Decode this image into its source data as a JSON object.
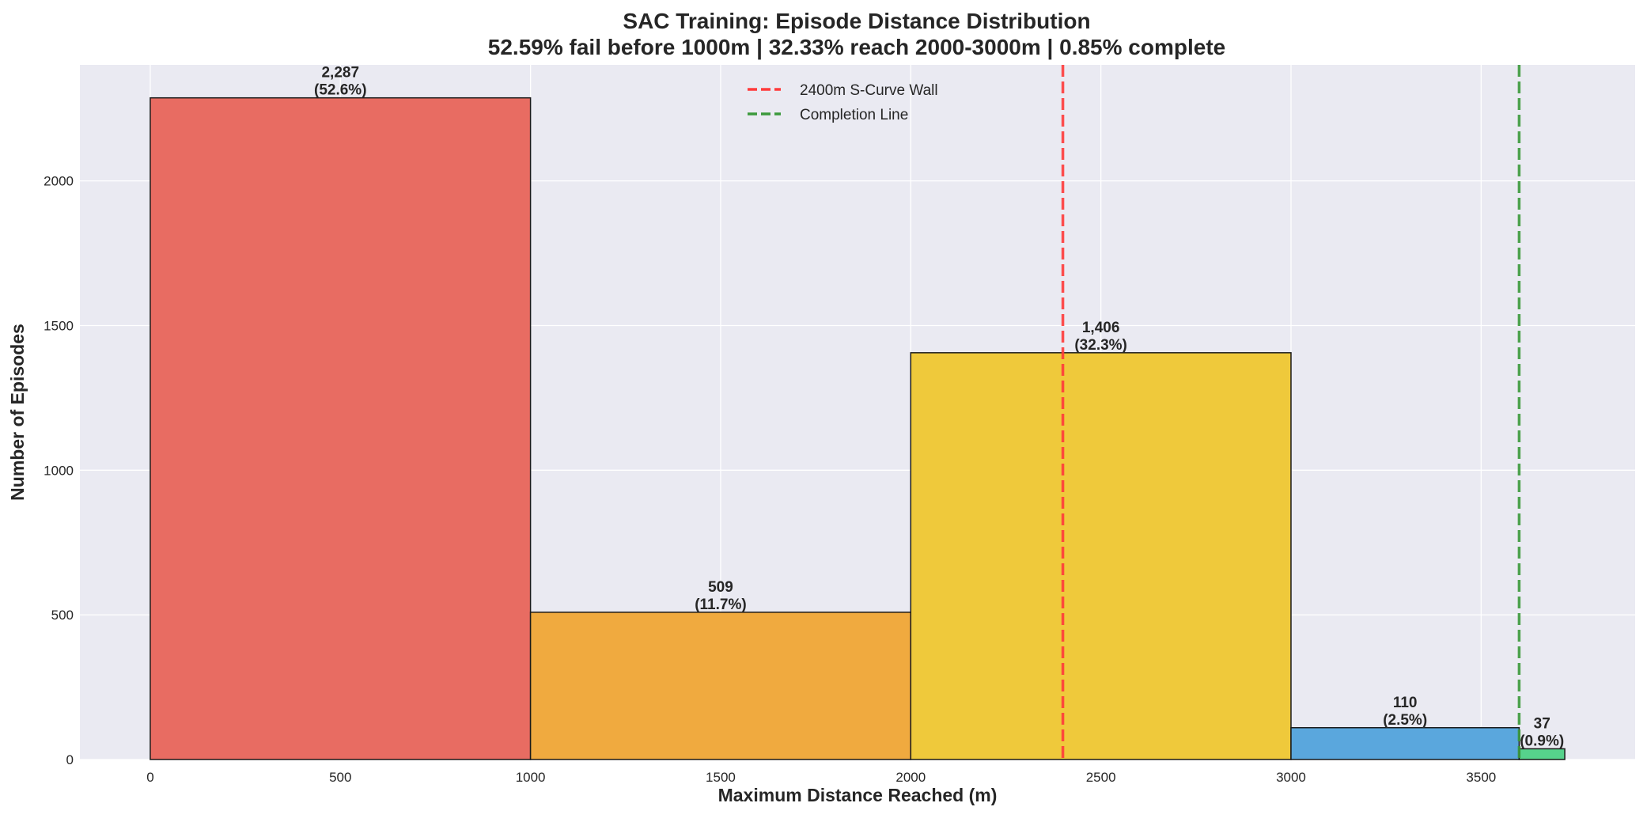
{
  "chart_data": {
    "type": "bar",
    "title": "SAC Training: Episode Distance Distribution",
    "subtitle": "52.59% fail before 1000m | 32.33% reach 2000-3000m | 0.85% complete",
    "xlabel": "Maximum Distance Reached (m)",
    "ylabel": "Number of Episodes",
    "xlim": [
      -185,
      3905
    ],
    "ylim": [
      0,
      2401
    ],
    "grid": true,
    "legend_position": "top-center",
    "xticks": [
      0,
      500,
      1000,
      1500,
      2000,
      2500,
      3000,
      3500
    ],
    "yticks": [
      0,
      500,
      1000,
      1500,
      2000
    ],
    "bins": [
      {
        "start": 0,
        "end": 1000,
        "value": 2287,
        "count_label": "2,287",
        "pct_label": "(52.6%)",
        "color": "#e86c62"
      },
      {
        "start": 1000,
        "end": 2000,
        "value": 509,
        "count_label": "509",
        "pct_label": "(11.7%)",
        "color": "#f0aa3f"
      },
      {
        "start": 2000,
        "end": 3000,
        "value": 1406,
        "count_label": "1,406",
        "pct_label": "(32.3%)",
        "color": "#efc93b"
      },
      {
        "start": 3000,
        "end": 3600,
        "value": 110,
        "count_label": "110",
        "pct_label": "(2.5%)",
        "color": "#5aa7dd"
      },
      {
        "start": 3600,
        "end": 3720,
        "value": 37,
        "count_label": "37",
        "pct_label": "(0.9%)",
        "color": "#56d28c"
      }
    ],
    "reference_lines": [
      {
        "x": 2400,
        "label": "2400m S-Curve Wall",
        "color": "#ff3b3b"
      },
      {
        "x": 3600,
        "label": "Completion Line",
        "color": "#3c9a3c"
      }
    ]
  }
}
